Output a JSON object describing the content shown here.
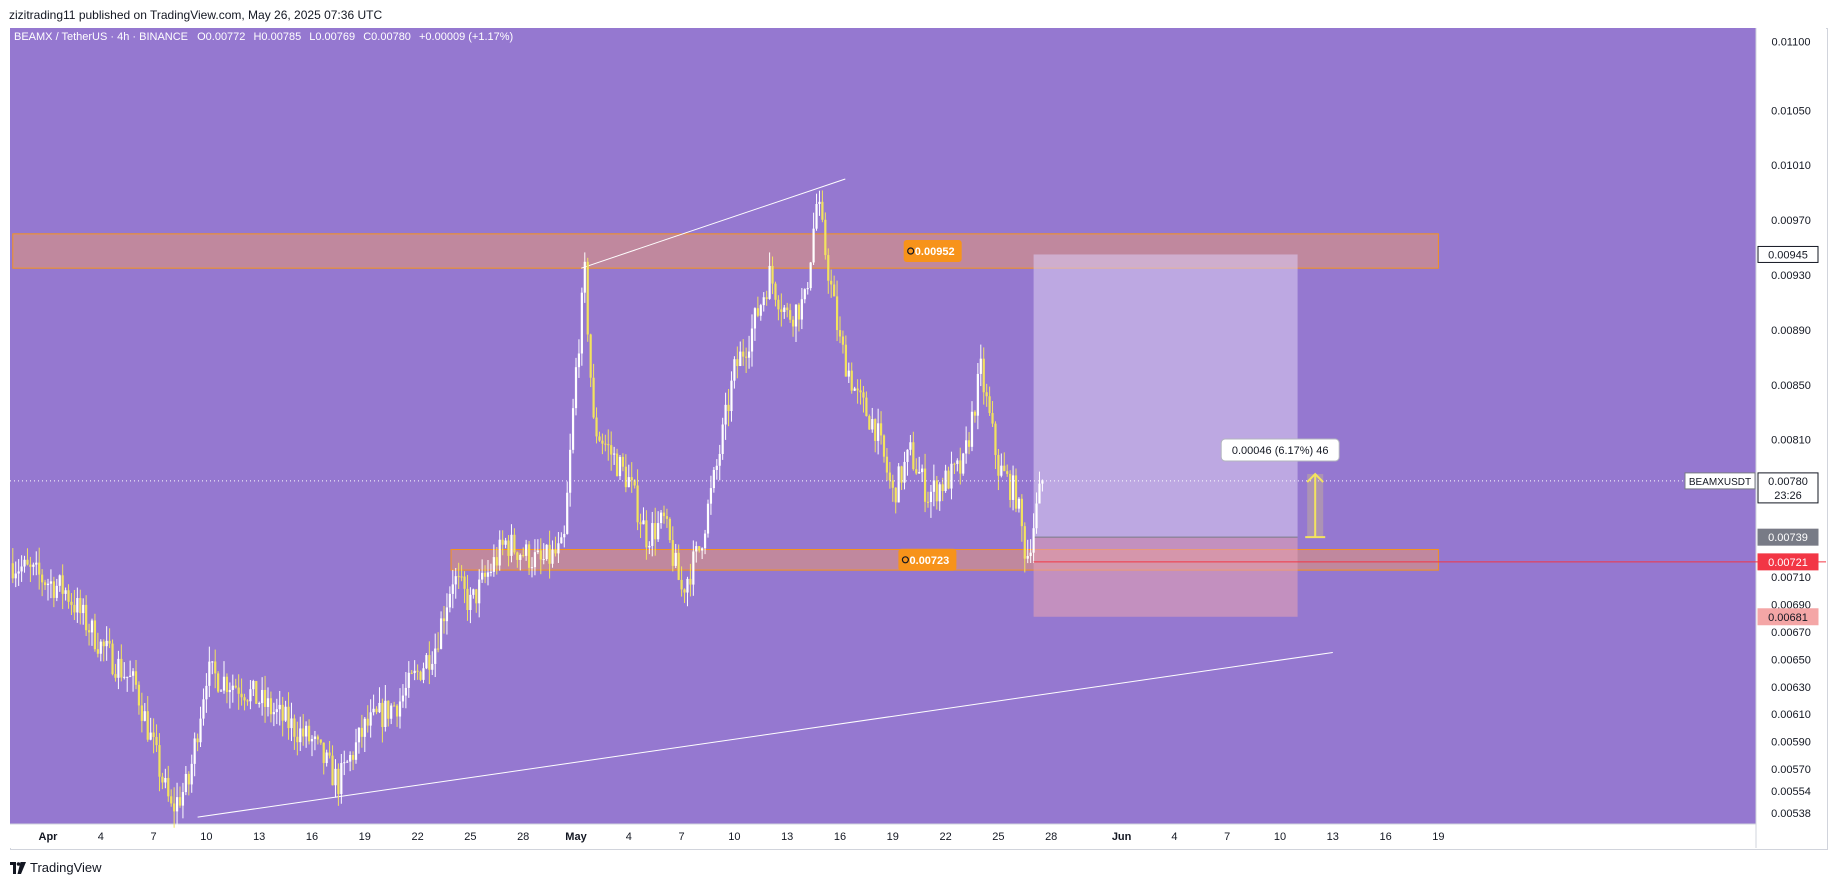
{
  "header": {
    "publish_line": "zizitrading11 published on TradingView.com, May 26, 2025 07:36 UTC"
  },
  "footer": {
    "brand": "TradingView",
    "logo_icon": "tradingview-logo-icon"
  },
  "legend": {
    "symbol_line": "BEAMX / TetherUS · 4h · BINANCE",
    "open": "O0.00772",
    "high": "H0.00785",
    "low": "L0.00769",
    "close": "C0.00780",
    "change": "+0.00009 (+1.17%)"
  },
  "colors": {
    "background": "#9578d0",
    "candle_up": "#ffffff",
    "candle_down": "#f3e35e",
    "zone_fill": "#f59b62",
    "zone_border": "#f7931a",
    "badge": "#f7931a",
    "stop_zone": "#e3a0b4",
    "target_zone": "#d8c8ef",
    "measure": "#f3e35e",
    "last_price": "#ffffff",
    "red_line": "#f23645"
  },
  "chart_data": {
    "type": "candlestick",
    "symbol": "BEAMXUSDT",
    "timeframe": "4h",
    "ylim": [
      0.0053,
      0.0111
    ],
    "y_ticks": [
      "0.01100",
      "0.01050",
      "0.01010",
      "0.00970",
      "0.00930",
      "0.00890",
      "0.00850",
      "0.00810",
      "0.00710",
      "0.00690",
      "0.00670",
      "0.00650",
      "0.00630",
      "0.00610",
      "0.00590",
      "0.00570",
      "0.00554",
      "0.00538"
    ],
    "x_ticks": [
      {
        "label": "Apr",
        "day": 0
      },
      {
        "label": "4",
        "day": 3
      },
      {
        "label": "7",
        "day": 6
      },
      {
        "label": "10",
        "day": 9
      },
      {
        "label": "13",
        "day": 12
      },
      {
        "label": "16",
        "day": 15
      },
      {
        "label": "19",
        "day": 18
      },
      {
        "label": "22",
        "day": 21
      },
      {
        "label": "25",
        "day": 24
      },
      {
        "label": "28",
        "day": 27
      },
      {
        "label": "May",
        "day": 30
      },
      {
        "label": "4",
        "day": 33
      },
      {
        "label": "7",
        "day": 36
      },
      {
        "label": "10",
        "day": 39
      },
      {
        "label": "13",
        "day": 42
      },
      {
        "label": "16",
        "day": 45
      },
      {
        "label": "19",
        "day": 48
      },
      {
        "label": "22",
        "day": 51
      },
      {
        "label": "25",
        "day": 54
      },
      {
        "label": "28",
        "day": 57
      },
      {
        "label": "Jun",
        "day": 61
      },
      {
        "label": "4",
        "day": 64
      },
      {
        "label": "7",
        "day": 67
      },
      {
        "label": "10",
        "day": 70
      },
      {
        "label": "13",
        "day": 73
      },
      {
        "label": "16",
        "day": 76
      },
      {
        "label": "19",
        "day": 79
      }
    ],
    "price_path": [
      {
        "day": -2,
        "price": 0.0072
      },
      {
        "day": 1,
        "price": 0.007
      },
      {
        "day": 3,
        "price": 0.0066
      },
      {
        "day": 5,
        "price": 0.0063
      },
      {
        "day": 7,
        "price": 0.0054
      },
      {
        "day": 8,
        "price": 0.0056
      },
      {
        "day": 9,
        "price": 0.0064
      },
      {
        "day": 11,
        "price": 0.0063
      },
      {
        "day": 13,
        "price": 0.0061
      },
      {
        "day": 15,
        "price": 0.0059
      },
      {
        "day": 16.5,
        "price": 0.0056
      },
      {
        "day": 18,
        "price": 0.006
      },
      {
        "day": 20,
        "price": 0.0062
      },
      {
        "day": 22,
        "price": 0.0066
      },
      {
        "day": 23,
        "price": 0.0071
      },
      {
        "day": 24,
        "price": 0.0069
      },
      {
        "day": 26,
        "price": 0.00735
      },
      {
        "day": 28,
        "price": 0.0072
      },
      {
        "day": 29.3,
        "price": 0.0073
      },
      {
        "day": 30,
        "price": 0.0086
      },
      {
        "day": 30.5,
        "price": 0.0093
      },
      {
        "day": 31,
        "price": 0.0082
      },
      {
        "day": 33,
        "price": 0.0078
      },
      {
        "day": 34,
        "price": 0.0074
      },
      {
        "day": 35,
        "price": 0.0075
      },
      {
        "day": 36,
        "price": 0.007
      },
      {
        "day": 37,
        "price": 0.0073
      },
      {
        "day": 38,
        "price": 0.0079
      },
      {
        "day": 39,
        "price": 0.0086
      },
      {
        "day": 40,
        "price": 0.0089
      },
      {
        "day": 41,
        "price": 0.0093
      },
      {
        "day": 42,
        "price": 0.009
      },
      {
        "day": 43,
        "price": 0.0091
      },
      {
        "day": 43.7,
        "price": 0.00985
      },
      {
        "day": 44.5,
        "price": 0.0092
      },
      {
        "day": 45,
        "price": 0.0088
      },
      {
        "day": 46,
        "price": 0.0084
      },
      {
        "day": 47,
        "price": 0.0082
      },
      {
        "day": 48,
        "price": 0.0077
      },
      {
        "day": 49,
        "price": 0.008
      },
      {
        "day": 50,
        "price": 0.0077
      },
      {
        "day": 51,
        "price": 0.0078
      },
      {
        "day": 52,
        "price": 0.0079
      },
      {
        "day": 53,
        "price": 0.0086
      },
      {
        "day": 54,
        "price": 0.0079
      },
      {
        "day": 55,
        "price": 0.0077
      },
      {
        "day": 55.6,
        "price": 0.00723
      },
      {
        "day": 56.5,
        "price": 0.0078
      }
    ],
    "resistance_zone": {
      "from_day": -2,
      "to_day": 79,
      "low": 0.00935,
      "high": 0.0096,
      "label": "0.00952"
    },
    "support_zone": {
      "from_day": 22.9,
      "to_day": 79,
      "low": 0.00715,
      "high": 0.0073,
      "label": "0.00723"
    },
    "upper_trendline": {
      "from": {
        "day": 30.3,
        "price": 0.00935
      },
      "to": {
        "day": 45.3,
        "price": 0.01
      }
    },
    "lower_trendline": {
      "from": {
        "day": 8.5,
        "price": 0.00535
      },
      "to": {
        "day": 73,
        "price": 0.00655
      }
    },
    "position": {
      "from_day": 56,
      "to_day": 71,
      "entry": 0.00739,
      "target": 0.00945,
      "stop": 0.00681
    },
    "measure": {
      "day": 72,
      "from": 0.00739,
      "to": 0.00785,
      "label": "0.00046 (6.17%) 46"
    },
    "red_line": {
      "from_day": 56,
      "price": 0.00721
    },
    "last_price": {
      "price": 0.0078,
      "label": "BEAMXUSDT",
      "countdown": "23:26"
    },
    "price_labels": {
      "last": "0.00780",
      "target": "0.00945",
      "entry": "0.00739",
      "red": "0.00721",
      "stop": "0.00681"
    }
  }
}
